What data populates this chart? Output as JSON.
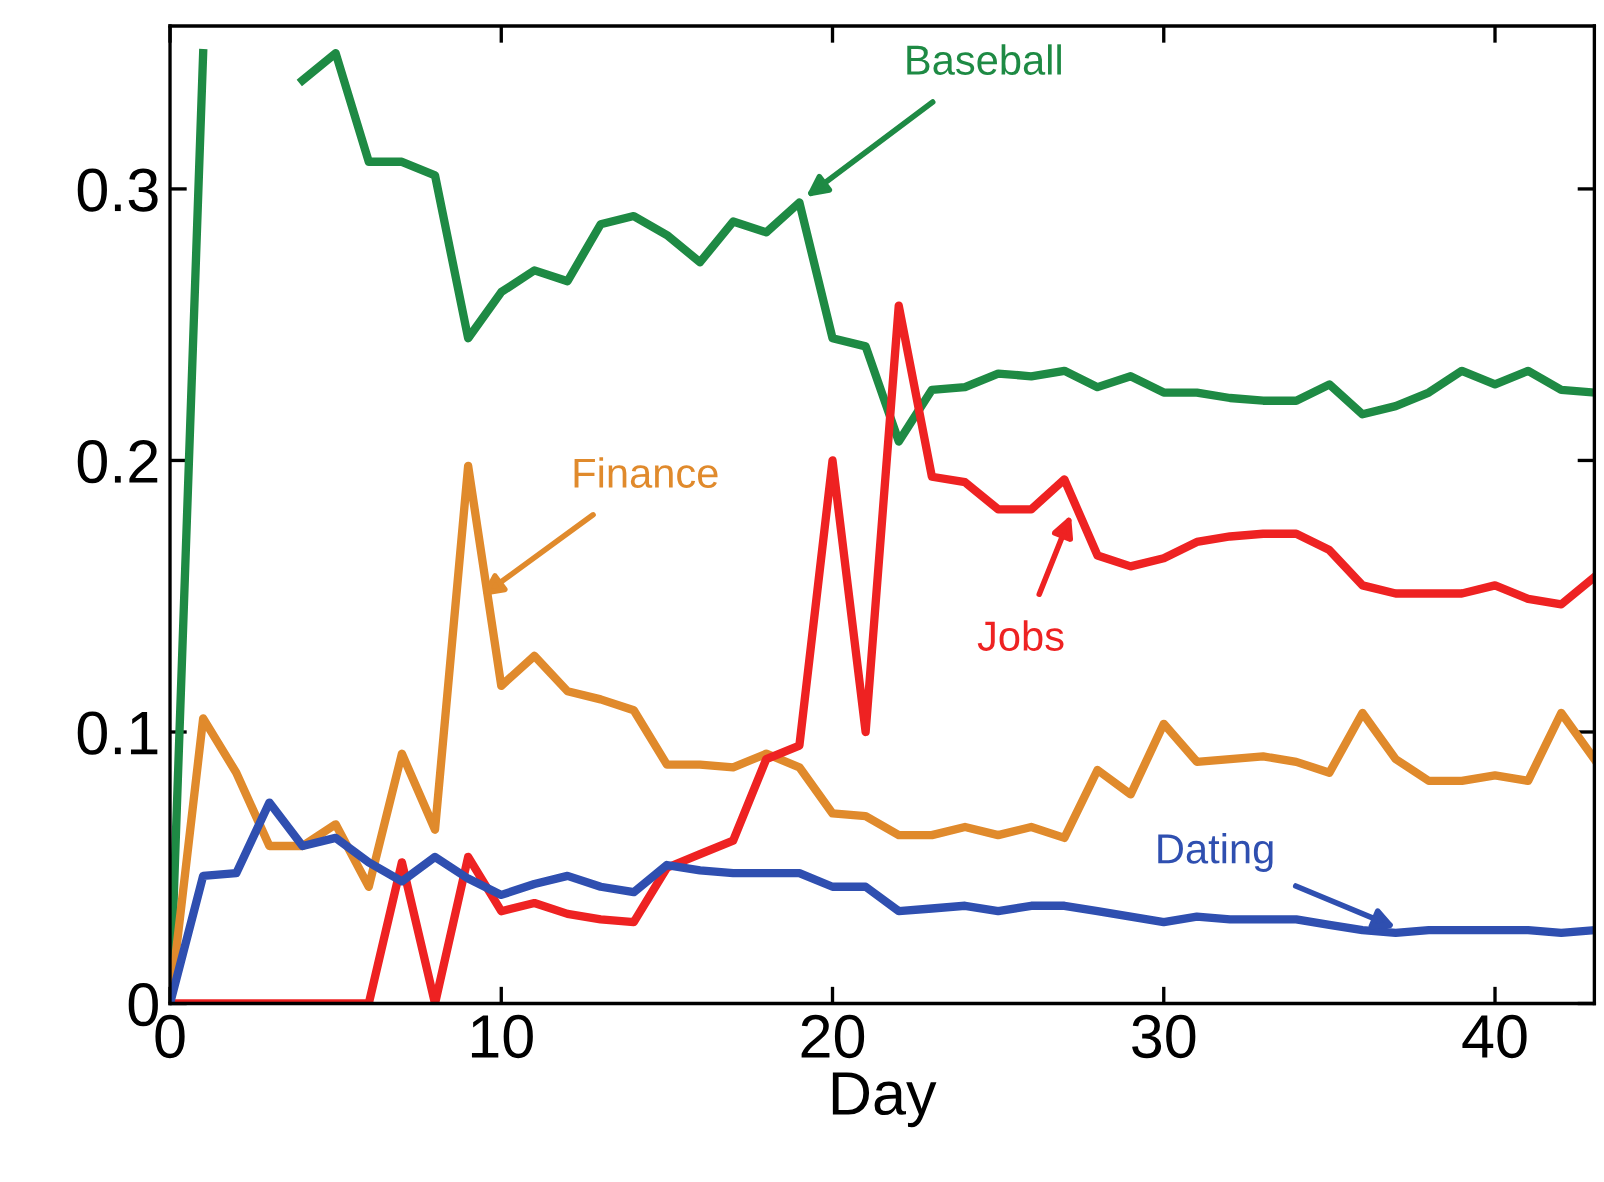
{
  "chart_data": {
    "type": "line",
    "xlabel": "Day",
    "xlim": [
      0,
      43
    ],
    "ylim": [
      0,
      0.36
    ],
    "xticks": [
      0,
      10,
      20,
      30,
      40
    ],
    "yticks": [
      0,
      0.1,
      0.2,
      0.3
    ],
    "grid": false,
    "legend": false,
    "line_style": "solid",
    "marker": "none",
    "x": [
      0,
      1,
      2,
      3,
      4,
      5,
      6,
      7,
      8,
      9,
      10,
      11,
      12,
      13,
      14,
      15,
      16,
      17,
      18,
      19,
      20,
      21,
      22,
      23,
      24,
      25,
      26,
      27,
      28,
      29,
      30,
      31,
      32,
      33,
      34,
      35,
      36,
      37,
      38,
      39,
      40,
      41,
      42,
      43
    ],
    "series": [
      {
        "color": "#1e8a44",
        "values": [
          0,
          0.35,
          null,
          null,
          0.34,
          0.35,
          0.31,
          0.31,
          0.305,
          0.245,
          0.262,
          0.27,
          0.266,
          0.287,
          0.29,
          0.283,
          0.273,
          0.288,
          0.284,
          0.295,
          0.245,
          0.242,
          0.207,
          0.226,
          0.227,
          0.232,
          0.231,
          0.233,
          0.227,
          0.231,
          0.225,
          0.225,
          0.223,
          0.222,
          0.222,
          0.228,
          0.217,
          0.22,
          0.225,
          0.233,
          0.228,
          0.233,
          0.226,
          0.225
        ]
      },
      {
        "color": "#e08a2c",
        "values": [
          0,
          0.105,
          0.085,
          0.058,
          0.058,
          0.066,
          0.043,
          0.092,
          0.064,
          0.198,
          0.117,
          0.128,
          0.115,
          0.112,
          0.108,
          0.088,
          0.088,
          0.087,
          0.092,
          0.087,
          0.07,
          0.069,
          0.062,
          0.062,
          0.065,
          0.062,
          0.065,
          0.061,
          0.086,
          0.077,
          0.103,
          0.089,
          0.09,
          0.091,
          0.089,
          0.085,
          0.107,
          0.09,
          0.082,
          0.082,
          0.084,
          0.082,
          0.107,
          0.09
        ]
      },
      {
        "color": "#ee2222",
        "values": [
          0,
          0,
          0,
          0,
          0,
          0,
          0,
          0.052,
          0,
          0.054,
          0.034,
          0.037,
          0.033,
          0.031,
          0.03,
          0.05,
          0.055,
          0.06,
          0.09,
          0.095,
          0.2,
          0.1,
          0.257,
          0.194,
          0.192,
          0.182,
          0.182,
          0.193,
          0.165,
          0.161,
          0.164,
          0.17,
          0.172,
          0.173,
          0.173,
          0.167,
          0.154,
          0.151,
          0.151,
          0.151,
          0.154,
          0.149,
          0.147,
          0.157
        ]
      },
      {
        "color": "#2f4fb0",
        "values": [
          0,
          0.047,
          0.048,
          0.074,
          0.058,
          0.061,
          0.052,
          0.045,
          0.054,
          0.046,
          0.04,
          0.044,
          0.047,
          0.043,
          0.041,
          0.051,
          0.049,
          0.048,
          0.048,
          0.048,
          0.043,
          0.043,
          0.034,
          0.035,
          0.036,
          0.034,
          0.036,
          0.036,
          0.034,
          0.032,
          0.03,
          0.032,
          0.031,
          0.031,
          0.031,
          0.029,
          0.027,
          0.026,
          0.027,
          0.027,
          0.027,
          0.027,
          0.026,
          0.027
        ]
      }
    ],
    "annotations": [
      {
        "text": "Baseball",
        "x": 19.2,
        "y": 0.297
      },
      {
        "text": "Finance",
        "x": 9.4,
        "y": 0.15
      },
      {
        "text": "Jobs",
        "x": 27.2,
        "y": 0.18
      },
      {
        "text": "Dating",
        "x": 37,
        "y": 0.028
      }
    ]
  }
}
